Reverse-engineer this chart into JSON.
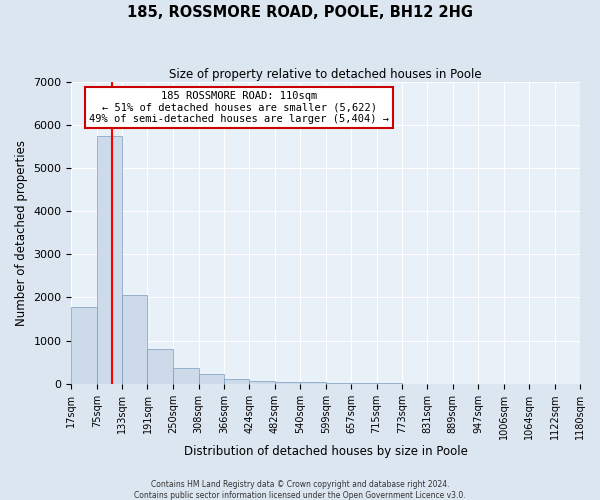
{
  "title": "185, ROSSMORE ROAD, POOLE, BH12 2HG",
  "subtitle": "Size of property relative to detached houses in Poole",
  "xlabel": "Distribution of detached houses by size in Poole",
  "ylabel": "Number of detached properties",
  "bar_values": [
    1780,
    5750,
    2050,
    810,
    370,
    220,
    120,
    70,
    50,
    30,
    20,
    15,
    10,
    5,
    5,
    5,
    0,
    0,
    0,
    0
  ],
  "bin_labels": [
    "17sqm",
    "75sqm",
    "133sqm",
    "191sqm",
    "250sqm",
    "308sqm",
    "366sqm",
    "424sqm",
    "482sqm",
    "540sqm",
    "599sqm",
    "657sqm",
    "715sqm",
    "773sqm",
    "831sqm",
    "889sqm",
    "947sqm",
    "1006sqm",
    "1064sqm",
    "1122sqm",
    "1180sqm"
  ],
  "bar_color": "#cddaea",
  "bar_edge_color": "#7a9dbf",
  "red_line_x": 110,
  "bin_edges": [
    17,
    75,
    133,
    191,
    250,
    308,
    366,
    424,
    482,
    540,
    599,
    657,
    715,
    773,
    831,
    889,
    947,
    1006,
    1064,
    1122,
    1180
  ],
  "ylim": [
    0,
    7000
  ],
  "yticks": [
    0,
    1000,
    2000,
    3000,
    4000,
    5000,
    6000,
    7000
  ],
  "annotation_title": "185 ROSSMORE ROAD: 110sqm",
  "annotation_line1": "← 51% of detached houses are smaller (5,622)",
  "annotation_line2": "49% of semi-detached houses are larger (5,404) →",
  "annotation_box_facecolor": "#ffffff",
  "annotation_box_edgecolor": "#cc0000",
  "footer1": "Contains HM Land Registry data © Crown copyright and database right 2024.",
  "footer2": "Contains public sector information licensed under the Open Government Licence v3.0.",
  "bg_color": "#dce6f0",
  "plot_bg_color": "#e8f0f8",
  "grid_color": "#ffffff"
}
